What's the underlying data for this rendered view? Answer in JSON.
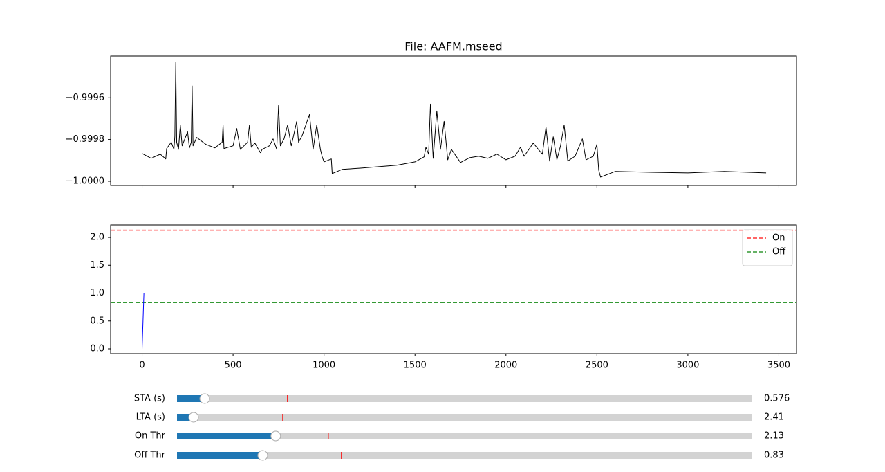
{
  "chart_data": [
    {
      "type": "line",
      "title": "File: AAFM.mseed",
      "x": [
        0,
        50,
        100,
        130,
        135,
        160,
        175,
        180,
        185,
        190,
        200,
        210,
        220,
        250,
        260,
        270,
        275,
        280,
        300,
        350,
        400,
        440,
        445,
        450,
        500,
        520,
        540,
        580,
        590,
        600,
        620,
        650,
        660,
        700,
        720,
        740,
        750,
        760,
        780,
        800,
        820,
        850,
        860,
        880,
        920,
        940,
        960,
        980,
        990,
        1000,
        1040,
        1045,
        1100,
        1200,
        1300,
        1400,
        1500,
        1550,
        1560,
        1575,
        1585,
        1600,
        1620,
        1640,
        1660,
        1680,
        1700,
        1750,
        1800,
        1850,
        1900,
        1950,
        2000,
        2050,
        2080,
        2100,
        2150,
        2200,
        2220,
        2240,
        2260,
        2280,
        2300,
        2320,
        2340,
        2380,
        2420,
        2440,
        2480,
        2500,
        2510,
        2520,
        2600,
        2800,
        3000,
        3200,
        3430
      ],
      "series": [
        {
          "color": "#000000",
          "values": [
            -0.999867,
            -0.99989,
            -0.99987,
            -0.999893,
            -0.999843,
            -0.999813,
            -0.999847,
            -0.999783,
            -0.99943,
            -0.999813,
            -0.999847,
            -0.99973,
            -0.99983,
            -0.999763,
            -0.99984,
            -0.999813,
            -0.999543,
            -0.99983,
            -0.99979,
            -0.999823,
            -0.99984,
            -0.999813,
            -0.99973,
            -0.999843,
            -0.99983,
            -0.999747,
            -0.999847,
            -0.999813,
            -0.99973,
            -0.999837,
            -0.999817,
            -0.999863,
            -0.999847,
            -0.99983,
            -0.999797,
            -0.999847,
            -0.999637,
            -0.99983,
            -0.999797,
            -0.99973,
            -0.99983,
            -0.999713,
            -0.999813,
            -0.99978,
            -0.99968,
            -0.999847,
            -0.99973,
            -0.999847,
            -0.999883,
            -0.999907,
            -0.999893,
            -0.999963,
            -0.999943,
            -0.999937,
            -0.99993,
            -0.999923,
            -0.999907,
            -0.999883,
            -0.999837,
            -0.99987,
            -0.99963,
            -0.99989,
            -0.999663,
            -0.999847,
            -0.999713,
            -0.999897,
            -0.999847,
            -0.99991,
            -0.999887,
            -0.99988,
            -0.99989,
            -0.99987,
            -0.999897,
            -0.99988,
            -0.999837,
            -0.99988,
            -0.999817,
            -0.99987,
            -0.99974,
            -0.999903,
            -0.999787,
            -0.999897,
            -0.99983,
            -0.99973,
            -0.999903,
            -0.99988,
            -0.999797,
            -0.999897,
            -0.99988,
            -0.999823,
            -0.999947,
            -0.99998,
            -0.999953,
            -0.999957,
            -0.99996,
            -0.999953,
            -0.99996
          ]
        }
      ],
      "xlim": [
        -173,
        3597
      ],
      "ylim": [
        -1.00002,
        -0.9994
      ],
      "yticks": [
        {
          "value": -1.0,
          "label": "−1.0000"
        },
        {
          "value": -0.9998,
          "label": "−0.9998"
        },
        {
          "value": -0.9996,
          "label": "−0.9996"
        }
      ]
    },
    {
      "type": "line",
      "x": [
        0,
        0,
        10,
        3430
      ],
      "series": [
        {
          "color": "#0000ff",
          "values": [
            0,
            0,
            1.0,
            1.0
          ]
        }
      ],
      "hlines": [
        {
          "name": "On",
          "value": 2.13,
          "color": "#ff0000"
        },
        {
          "name": "Off",
          "value": 0.83,
          "color": "#008000"
        }
      ],
      "legend": "upper right",
      "xlim": [
        -173,
        3597
      ],
      "ylim": [
        -0.087,
        2.224
      ],
      "xticks": [
        0,
        500,
        1000,
        1500,
        2000,
        2500,
        3000,
        3500
      ],
      "yticks": [
        {
          "value": 0,
          "label": "0.0"
        },
        0.5,
        {
          "value": 1.0,
          "label": "1.0"
        },
        1.5,
        {
          "value": 2.0,
          "label": "2.0"
        }
      ]
    }
  ],
  "sliders": [
    {
      "label": "STA (s)",
      "value": 0.576,
      "value_label": "0.576",
      "min": 0.1,
      "max": 10,
      "init": 2.0
    },
    {
      "label": "LTA (s)",
      "value": 2.41,
      "value_label": "2.41",
      "min": 1,
      "max": 50,
      "init": 10
    },
    {
      "label": "On Thr",
      "value": 2.13,
      "value_label": "2.13",
      "min": 0.5,
      "max": 10,
      "init": 3.0
    },
    {
      "label": "Off Thr",
      "value": 0.83,
      "value_label": "0.83",
      "min": 0.1,
      "max": 5,
      "init": 1.5
    }
  ]
}
